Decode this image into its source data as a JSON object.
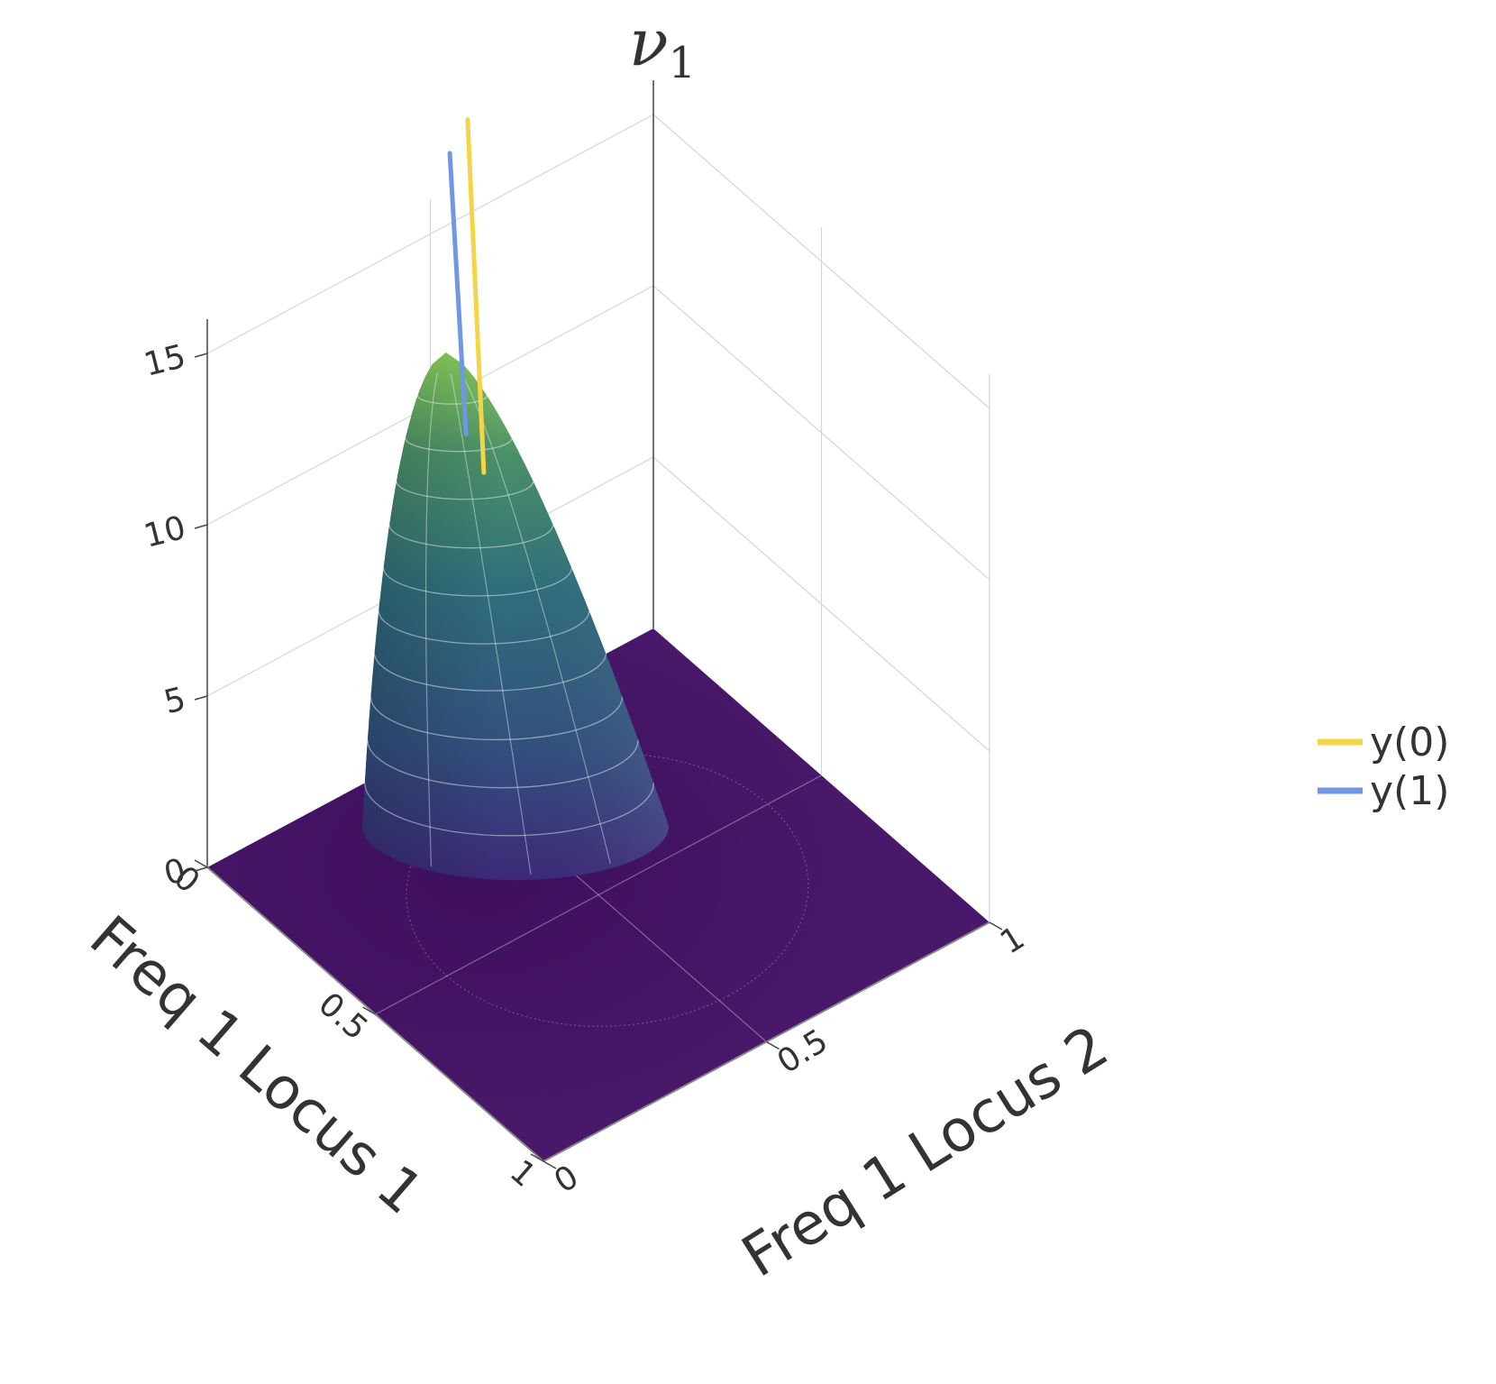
{
  "chart_data": {
    "type": "surface3d",
    "title_symbol": "ν",
    "title_subscript": "1",
    "x_axis": {
      "label": "Freq 1 Locus 1",
      "range": [
        0,
        1
      ],
      "ticks": [
        "0",
        "0.5",
        "1"
      ]
    },
    "y_axis": {
      "label": "Freq 1 Locus 2",
      "range": [
        0,
        1
      ],
      "ticks": [
        "0",
        "0.5",
        "1"
      ]
    },
    "z_axis": {
      "label": "",
      "range": [
        0,
        16
      ],
      "ticks": [
        "0",
        "5",
        "10",
        "15"
      ]
    },
    "surface": {
      "peak_x": 0.1,
      "peak_y": 0.5,
      "peak_z": 12.4,
      "colorscale": "viridis"
    },
    "series": [
      {
        "name": "y(0)",
        "color": "#f5d547",
        "x": 0.0,
        "y": 0.62,
        "z": [
          7.2,
          17.5
        ]
      },
      {
        "name": "y(1)",
        "color": "#6f97e6",
        "x": 0.0,
        "y": 0.58,
        "z": [
          8.6,
          16.8
        ]
      }
    ],
    "legend_position": "right",
    "grid": true
  }
}
